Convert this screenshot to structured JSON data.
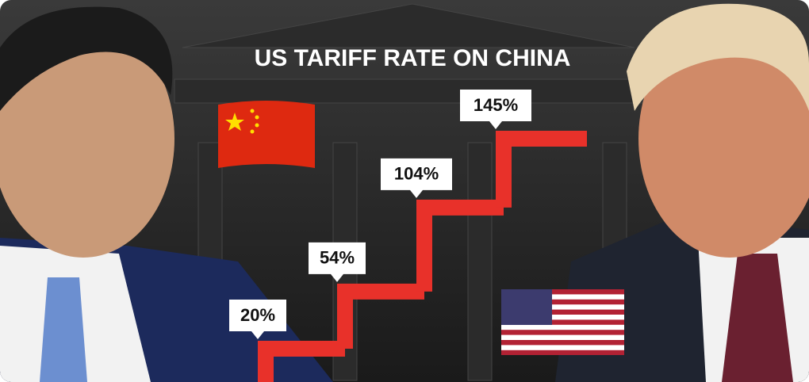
{
  "chart_data": {
    "type": "step",
    "title": "US TARIFF RATE ON CHINA",
    "values": [
      20,
      54,
      104,
      145
    ],
    "value_labels": [
      "20%",
      "54%",
      "104%",
      "145%"
    ],
    "color": "#e8312a"
  }
}
